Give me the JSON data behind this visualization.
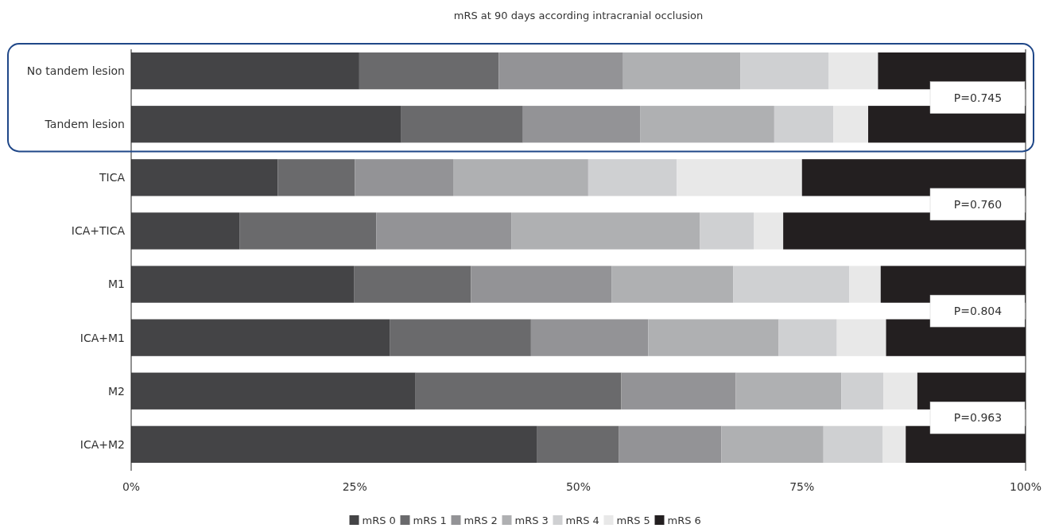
{
  "chart_data": {
    "type": "bar",
    "orientation": "horizontal",
    "stacked": true,
    "title": "mRS at 90 days according intracranial occlusion",
    "categories": [
      "No tandem lesion",
      "Tandem lesion",
      "TICA",
      "ICA+TICA",
      "M1",
      "ICA+M1",
      "M2",
      "ICA+M2"
    ],
    "series": [
      {
        "name": "mRS 0",
        "color": "#444446",
        "values": [
          25.5,
          30.2,
          16.4,
          12.1,
          24.9,
          28.9,
          31.8,
          45.4
        ]
      },
      {
        "name": "mRS 1",
        "color": "#6a6a6c",
        "values": [
          15.6,
          13.6,
          8.6,
          15.3,
          13.1,
          15.8,
          23.0,
          9.1
        ]
      },
      {
        "name": "mRS 2",
        "color": "#939396",
        "values": [
          13.9,
          13.1,
          11.0,
          15.1,
          15.7,
          13.1,
          12.8,
          11.5
        ]
      },
      {
        "name": "mRS 3",
        "color": "#afb0b2",
        "values": [
          13.1,
          15.0,
          15.1,
          21.1,
          13.6,
          14.6,
          11.8,
          11.4
        ]
      },
      {
        "name": "mRS 4",
        "color": "#cfd0d2",
        "values": [
          9.9,
          6.6,
          9.9,
          6.0,
          13.0,
          6.5,
          4.7,
          6.6
        ]
      },
      {
        "name": "mRS 5",
        "color": "#e8e8e8",
        "values": [
          5.5,
          3.9,
          14.0,
          3.3,
          3.5,
          5.5,
          3.8,
          2.6
        ]
      },
      {
        "name": "mRS 6",
        "color": "#231f20",
        "values": [
          16.5,
          17.6,
          25.0,
          27.1,
          16.2,
          15.6,
          12.1,
          13.4
        ]
      }
    ],
    "xlim": [
      0,
      100
    ],
    "xticks": [
      {
        "value": 0,
        "label": "0%"
      },
      {
        "value": 25,
        "label": "25%"
      },
      {
        "value": 50,
        "label": "50%"
      },
      {
        "value": 75,
        "label": "75%"
      },
      {
        "value": 100,
        "label": "100%"
      }
    ],
    "annotations": [
      "P=0.745",
      "P=0.760",
      "P=0.804",
      "P=0.963"
    ],
    "legend": "bottom"
  }
}
